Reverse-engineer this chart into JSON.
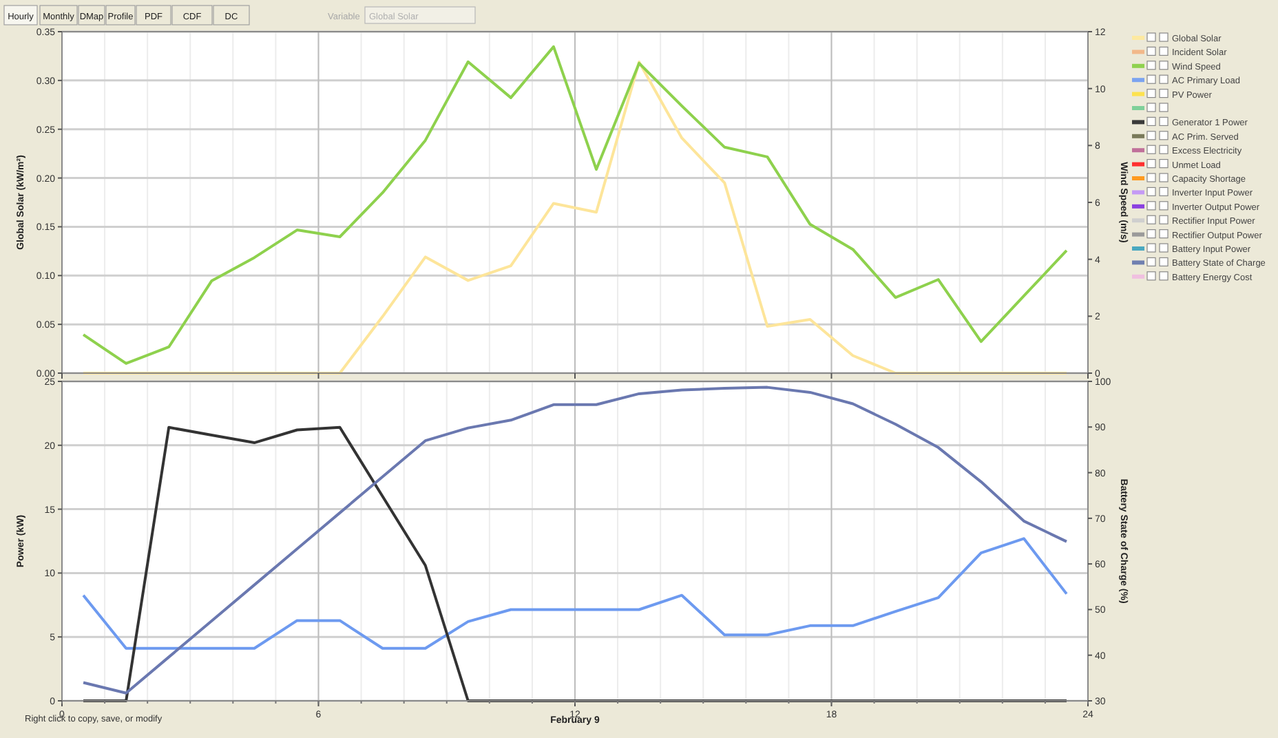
{
  "chart_data": [
    {
      "type": "line",
      "ylabel": "Global Solar (kW/m²)",
      "y2label": "Wind Speed (m/s)",
      "x": [
        0.5,
        1.5,
        2.5,
        3.5,
        4.5,
        5.5,
        6.5,
        7.5,
        8.5,
        9.5,
        10.5,
        11.5,
        12.5,
        13.5,
        14.5,
        15.5,
        16.5,
        17.5,
        18.5,
        19.5,
        20.5,
        21.5,
        22.5,
        23.5
      ],
      "xlim": [
        0,
        24
      ],
      "xticks": [
        {
          "value": 0,
          "label": null
        },
        {
          "value": 6,
          "label": null
        },
        {
          "value": 12,
          "label": null
        },
        {
          "value": 18,
          "label": null
        },
        {
          "value": 24,
          "label": null
        }
      ],
      "ylim": [
        0,
        0.35
      ],
      "yticks": [
        {
          "value": 0,
          "label": "0.00"
        },
        {
          "value": 0.05,
          "label": "0.05"
        },
        {
          "value": 0.1,
          "label": "0.10"
        },
        {
          "value": 0.15,
          "label": "0.15"
        },
        {
          "value": 0.2,
          "label": "0.20"
        },
        {
          "value": 0.25,
          "label": "0.25"
        },
        {
          "value": 0.3,
          "label": "0.30"
        },
        {
          "value": 0.35,
          "label": "0.35"
        }
      ],
      "y2lim": [
        0,
        12
      ],
      "y2ticks": [
        0,
        2,
        4,
        6,
        8,
        10,
        12
      ],
      "tick_labels": "y",
      "grid": true,
      "series": [
        {
          "color": "#fde59a",
          "values": [
            0,
            0,
            0,
            0,
            0,
            0,
            0,
            0.058,
            0.119,
            0.095,
            0.11,
            0.174,
            0.165,
            0.319,
            0.241,
            0.195,
            0.048,
            0.055,
            0.018,
            0,
            0,
            0,
            0,
            0
          ]
        },
        {
          "color": "#8ed14d",
          "axis": "y2",
          "values": [
            1.35,
            0.34,
            0.92,
            3.24,
            4.06,
            5.03,
            4.79,
            6.34,
            8.18,
            10.94,
            9.68,
            11.47,
            7.16,
            10.89,
            9.39,
            7.94,
            7.6,
            5.23,
            4.35,
            2.66,
            3.29,
            1.11,
            2.71,
            4.31
          ]
        }
      ]
    },
    {
      "type": "line",
      "xlabel": "February 9",
      "ylabel": "Power (kW)",
      "y2label": "Battery State of Charge (%)",
      "x": [
        0.5,
        1.5,
        2.5,
        3.5,
        4.5,
        5.5,
        6.5,
        7.5,
        8.5,
        9.5,
        10.5,
        11.5,
        12.5,
        13.5,
        14.5,
        15.5,
        16.5,
        17.5,
        18.5,
        19.5,
        20.5,
        21.5,
        22.5,
        23.5
      ],
      "xlim": [
        0,
        24
      ],
      "xticks": [
        0,
        6,
        12,
        18,
        24
      ],
      "ylim": [
        0,
        25
      ],
      "yticks": [
        0,
        5,
        10,
        15,
        20,
        25
      ],
      "y2lim": [
        30,
        100
      ],
      "y2ticks": [
        30,
        40,
        50,
        60,
        70,
        80,
        90,
        100
      ],
      "grid": true,
      "series": [
        {
          "color": "#6d9af0",
          "values": [
            8.26,
            4.11,
            4.11,
            4.11,
            4.11,
            6.28,
            6.28,
            4.11,
            4.11,
            6.2,
            7.14,
            7.14,
            7.14,
            7.14,
            8.26,
            5.16,
            5.16,
            5.88,
            5.88,
            7.0,
            8.08,
            11.58,
            12.7,
            8.37
          ]
        },
        {
          "color": "#333333",
          "values": [
            0,
            0,
            21.4,
            20.8,
            20.2,
            21.2,
            21.4,
            16.0,
            10.6,
            0,
            0,
            0,
            0,
            0,
            0,
            0,
            0,
            0,
            0,
            0,
            0,
            0,
            0,
            0
          ]
        },
        {
          "color": "#6a78b0",
          "axis": "y2",
          "values": [
            34.0,
            31.7,
            39.6,
            47.5,
            55.4,
            63.3,
            71.2,
            79.1,
            87.0,
            89.8,
            91.5,
            94.9,
            94.9,
            97.3,
            98.1,
            98.5,
            98.7,
            97.6,
            95.1,
            90.6,
            85.5,
            78.0,
            69.4,
            64.9
          ]
        }
      ]
    },
    {
      "type": "other",
      "categories": [
        "Global Solar",
        "Incident Solar",
        "Wind Speed",
        "AC Primary Load",
        "PV Power",
        null,
        "Generator 1 Power",
        "AC Prim. Served",
        "Excess Electricity",
        "Unmet Load",
        "Capacity Shortage",
        "Inverter Input Power",
        "Inverter Output Power",
        "Rectifier Input Power",
        "Rectifier Output Power",
        "Battery Input Power",
        "Battery State of Charge",
        "Battery Energy Cost"
      ],
      "colors": [
        "#fde9a0",
        "#f2b88a",
        "#8fd14f",
        "#7ba3f0",
        "#fde24f",
        "#7fd09a",
        "#3a3a3a",
        "#7a7a5a",
        "#c0709a",
        "#ff3030",
        "#ff9a20",
        "#c49af5",
        "#8a40e0",
        "#cfcfcf",
        "#9a9a9a",
        "#4aa8c0",
        "#7080b0",
        "#f0c0e0"
      ],
      "annotations": [
        "Hourly",
        "Monthly",
        "DMap",
        "Profile",
        "PDF",
        "CDF",
        "DC",
        "Variable",
        "Global Solar",
        "Right click to copy, save, or modify"
      ]
    }
  ]
}
